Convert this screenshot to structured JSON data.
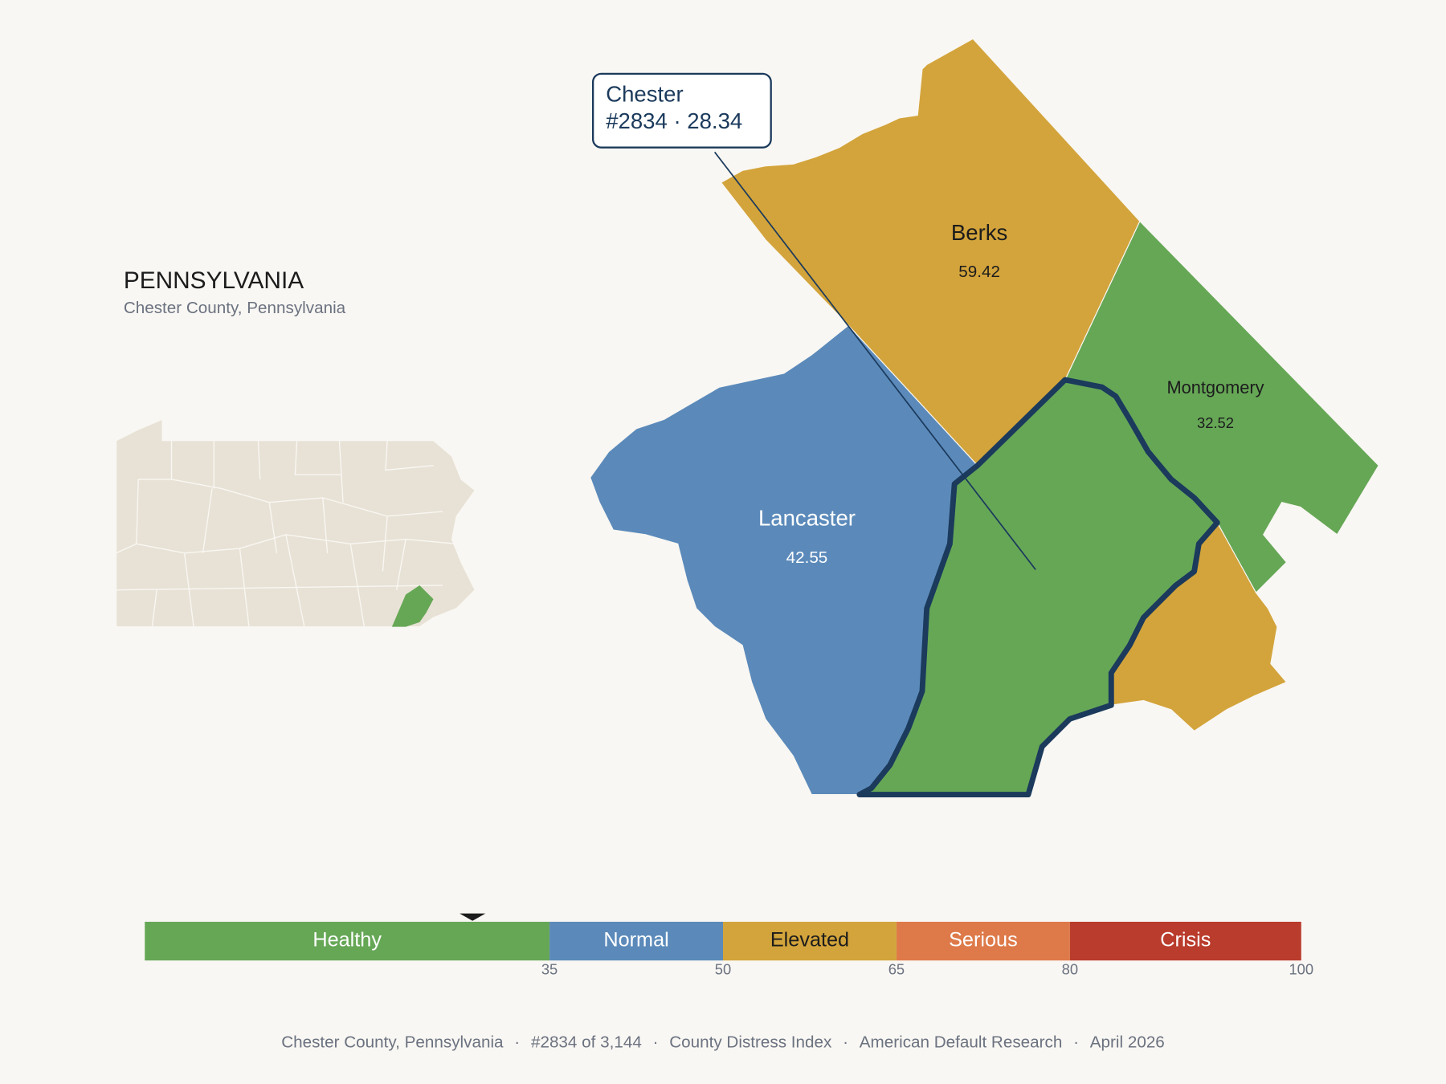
{
  "header": {
    "title": "PENNSYLVANIA",
    "subtitle": "Chester County, Pennsylvania"
  },
  "selected": {
    "name": "Chester",
    "label": "#2834 · 28.34",
    "value": 28.34
  },
  "counties": [
    {
      "name": "Berks",
      "value": 59.42
    },
    {
      "name": "Lancaster",
      "value": 42.55
    },
    {
      "name": "Montgomery",
      "value": 32.52
    }
  ],
  "legend": {
    "segments": [
      {
        "label": "Healthy",
        "color": "#66a756"
      },
      {
        "label": "Normal",
        "color": "#5b8aba"
      },
      {
        "label": "Elevated",
        "color": "#d3a43b"
      },
      {
        "label": "Serious",
        "color": "#de7a4a"
      },
      {
        "label": "Crisis",
        "color": "#b93c2c"
      }
    ],
    "breaks": [
      35,
      50,
      65,
      80,
      100
    ]
  },
  "footer": {
    "items": [
      "Chester County, Pennsylvania",
      "#2834 of 3,144",
      "County Distress Index",
      "American Default Research",
      "April 2026"
    ],
    "separator": "·"
  }
}
